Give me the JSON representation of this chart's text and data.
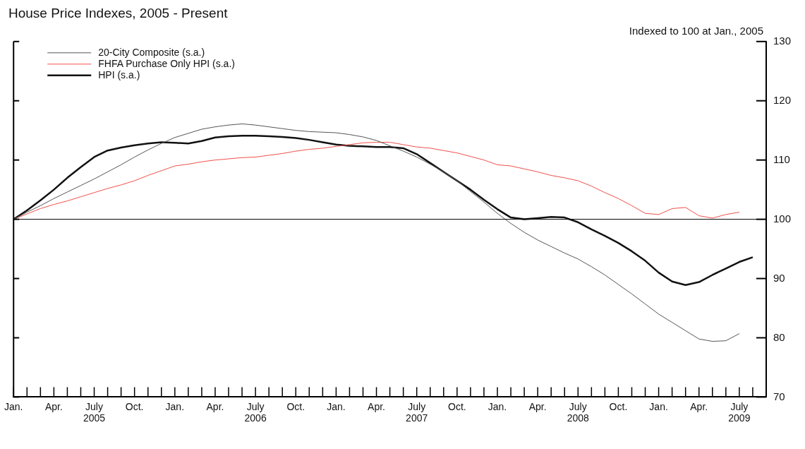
{
  "chart_data": {
    "type": "line",
    "title": "House Price Indexes, 2005 - Present",
    "annotations": [
      "Indexed to 100 at Jan., 2005"
    ],
    "x": [
      "2005-01",
      "2005-02",
      "2005-03",
      "2005-04",
      "2005-05",
      "2005-06",
      "2005-07",
      "2005-08",
      "2005-09",
      "2005-10",
      "2005-11",
      "2005-12",
      "2006-01",
      "2006-02",
      "2006-03",
      "2006-04",
      "2006-05",
      "2006-06",
      "2006-07",
      "2006-08",
      "2006-09",
      "2006-10",
      "2006-11",
      "2006-12",
      "2007-01",
      "2007-02",
      "2007-03",
      "2007-04",
      "2007-05",
      "2007-06",
      "2007-07",
      "2007-08",
      "2007-09",
      "2007-10",
      "2007-11",
      "2007-12",
      "2008-01",
      "2008-02",
      "2008-03",
      "2008-04",
      "2008-05",
      "2008-06",
      "2008-07",
      "2008-08",
      "2008-09",
      "2008-10",
      "2008-11",
      "2008-12",
      "2009-01",
      "2009-02",
      "2009-03",
      "2009-04",
      "2009-05",
      "2009-06",
      "2009-07",
      "2009-08"
    ],
    "series": [
      {
        "name": "20-City Composite (s.a.)",
        "color": "#555555",
        "values": [
          100,
          101.2,
          102.3,
          103.5,
          104.6,
          105.7,
          106.8,
          108,
          109.2,
          110.5,
          111.7,
          112.8,
          113.8,
          114.5,
          115.2,
          115.6,
          115.9,
          116.1,
          115.9,
          115.6,
          115.3,
          115,
          114.8,
          114.7,
          114.6,
          114.3,
          113.9,
          113.3,
          112.4,
          111.5,
          110.5,
          109.3,
          108,
          106.5,
          104.7,
          102.9,
          101,
          99.3,
          97.8,
          96.5,
          95.4,
          94.3,
          93.3,
          92,
          90.6,
          89,
          87.4,
          85.7,
          84,
          82.6,
          81.2,
          79.8,
          79.4,
          79.5,
          80.7,
          null
        ]
      },
      {
        "name": "FHFA Purchase Only HPI (s.a.)",
        "color": "#f0504a",
        "values": [
          100,
          100.9,
          101.8,
          102.5,
          103.1,
          103.8,
          104.5,
          105.2,
          105.8,
          106.5,
          107.4,
          108.2,
          109,
          109.3,
          109.7,
          110,
          110.2,
          110.4,
          110.5,
          110.8,
          111.1,
          111.5,
          111.8,
          112,
          112.3,
          112.6,
          112.9,
          113,
          113,
          112.6,
          112.2,
          112,
          111.6,
          111.2,
          110.6,
          110,
          109.2,
          109,
          108.5,
          108,
          107.4,
          107,
          106.5,
          105.6,
          104.5,
          103.5,
          102.3,
          101,
          100.8,
          101.8,
          102,
          100.6,
          100.2,
          100.8,
          101.2,
          null
        ]
      },
      {
        "name": "HPI (s.a.)",
        "color": "#111111",
        "values": [
          100,
          101.5,
          103.2,
          105,
          107,
          108.8,
          110.5,
          111.6,
          112.1,
          112.5,
          112.8,
          113,
          112.9,
          112.8,
          113.2,
          113.8,
          114,
          114.1,
          114.1,
          114,
          113.9,
          113.7,
          113.4,
          113,
          112.6,
          112.4,
          112.3,
          112.2,
          112.2,
          112,
          111,
          109.5,
          108,
          106.5,
          105,
          103.3,
          101.7,
          100.3,
          100,
          100.2,
          100.4,
          100.3,
          99.5,
          98.3,
          97.2,
          96,
          94.6,
          93,
          91,
          89.5,
          88.9,
          89.4,
          90.6,
          91.7,
          92.8,
          93.6
        ]
      }
    ],
    "xlim": [
      "2005-01",
      "2009-09"
    ],
    "xticks": [
      {
        "value": "2005-01",
        "label": "Jan."
      },
      {
        "value": "2005-02",
        "label": null
      },
      {
        "value": "2005-03",
        "label": null
      },
      {
        "value": "2005-04",
        "label": "Apr."
      },
      {
        "value": "2005-05",
        "label": null
      },
      {
        "value": "2005-06",
        "label": null
      },
      {
        "value": "2005-07",
        "label": "July\n2005"
      },
      {
        "value": "2005-08",
        "label": null
      },
      {
        "value": "2005-09",
        "label": null
      },
      {
        "value": "2005-10",
        "label": "Oct."
      },
      {
        "value": "2005-11",
        "label": null
      },
      {
        "value": "2005-12",
        "label": null
      },
      {
        "value": "2006-01",
        "label": "Jan."
      },
      {
        "value": "2006-02",
        "label": null
      },
      {
        "value": "2006-03",
        "label": null
      },
      {
        "value": "2006-04",
        "label": "Apr."
      },
      {
        "value": "2006-05",
        "label": null
      },
      {
        "value": "2006-06",
        "label": null
      },
      {
        "value": "2006-07",
        "label": "July\n2006"
      },
      {
        "value": "2006-08",
        "label": null
      },
      {
        "value": "2006-09",
        "label": null
      },
      {
        "value": "2006-10",
        "label": "Oct."
      },
      {
        "value": "2006-11",
        "label": null
      },
      {
        "value": "2006-12",
        "label": null
      },
      {
        "value": "2007-01",
        "label": "Jan."
      },
      {
        "value": "2007-02",
        "label": null
      },
      {
        "value": "2007-03",
        "label": null
      },
      {
        "value": "2007-04",
        "label": "Apr."
      },
      {
        "value": "2007-05",
        "label": null
      },
      {
        "value": "2007-06",
        "label": null
      },
      {
        "value": "2007-07",
        "label": "July\n2007"
      },
      {
        "value": "2007-08",
        "label": null
      },
      {
        "value": "2007-09",
        "label": null
      },
      {
        "value": "2007-10",
        "label": "Oct."
      },
      {
        "value": "2007-11",
        "label": null
      },
      {
        "value": "2007-12",
        "label": null
      },
      {
        "value": "2008-01",
        "label": "Jan."
      },
      {
        "value": "2008-02",
        "label": null
      },
      {
        "value": "2008-03",
        "label": null
      },
      {
        "value": "2008-04",
        "label": "Apr."
      },
      {
        "value": "2008-05",
        "label": null
      },
      {
        "value": "2008-06",
        "label": null
      },
      {
        "value": "2008-07",
        "label": "July\n2008"
      },
      {
        "value": "2008-08",
        "label": null
      },
      {
        "value": "2008-09",
        "label": null
      },
      {
        "value": "2008-10",
        "label": "Oct."
      },
      {
        "value": "2008-11",
        "label": null
      },
      {
        "value": "2008-12",
        "label": null
      },
      {
        "value": "2009-01",
        "label": "Jan."
      },
      {
        "value": "2009-02",
        "label": null
      },
      {
        "value": "2009-03",
        "label": null
      },
      {
        "value": "2009-04",
        "label": "Apr."
      },
      {
        "value": "2009-05",
        "label": null
      },
      {
        "value": "2009-06",
        "label": null
      },
      {
        "value": "2009-07",
        "label": "July\n2009"
      },
      {
        "value": "2009-08",
        "label": null
      },
      {
        "value": "2009-09",
        "label": null
      }
    ],
    "ylim": [
      70,
      130
    ],
    "yticks": [
      70,
      80,
      90,
      100,
      110,
      120,
      130
    ],
    "ref_lines": [
      {
        "axis": "y",
        "value": 100,
        "color": "#000000"
      }
    ],
    "legend": "top left",
    "grid": false,
    "marker": "none",
    "line_style": "solid"
  }
}
